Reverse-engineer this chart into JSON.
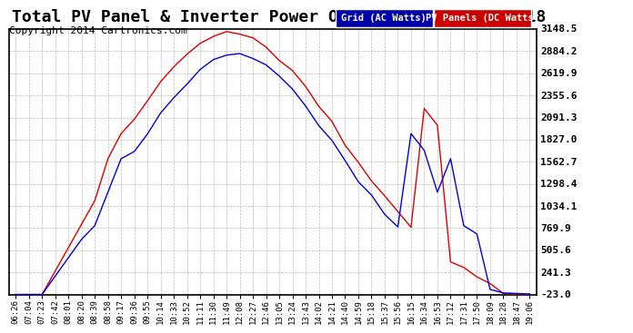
{
  "title": "Total PV Panel & Inverter Power Output Sat Sep 6 19:18",
  "copyright": "Copyright 2014 Cartronics.com",
  "legend_labels": [
    "Grid (AC Watts)",
    "PV Panels (DC Watts)"
  ],
  "legend_colors": [
    "#0000cc",
    "#cc0000"
  ],
  "legend_bg_colors": [
    "#0000cc",
    "#cc0000"
  ],
  "line_color_blue": "#0000dd",
  "line_color_red": "#dd0000",
  "background_color": "#ffffff",
  "plot_bg_color": "#ffffff",
  "grid_color": "#bbbbbb",
  "title_fontsize": 13,
  "copyright_fontsize": 8,
  "ytick_labels": [
    "-23.0",
    "241.3",
    "505.6",
    "769.9",
    "1034.1",
    "1298.4",
    "1562.7",
    "1827.0",
    "2091.3",
    "2355.6",
    "2619.9",
    "2884.2",
    "3148.5"
  ],
  "ytick_values": [
    -23.0,
    241.3,
    505.6,
    769.9,
    1034.1,
    1298.4,
    1562.7,
    1827.0,
    2091.3,
    2355.6,
    2619.9,
    2884.2,
    3148.5
  ],
  "ymin": -23.0,
  "ymax": 3148.5,
  "xtick_labels": [
    "06:26",
    "07:04",
    "07:23",
    "07:42",
    "08:01",
    "08:20",
    "08:39",
    "08:58",
    "09:17",
    "09:36",
    "09:55",
    "10:14",
    "10:33",
    "10:52",
    "11:11",
    "11:30",
    "11:49",
    "12:08",
    "12:27",
    "12:46",
    "13:05",
    "13:24",
    "13:43",
    "14:02",
    "14:21",
    "14:40",
    "14:59",
    "15:18",
    "15:37",
    "15:56",
    "16:15",
    "16:34",
    "16:53",
    "17:12",
    "17:31",
    "17:50",
    "18:09",
    "18:28",
    "18:47",
    "19:06"
  ]
}
